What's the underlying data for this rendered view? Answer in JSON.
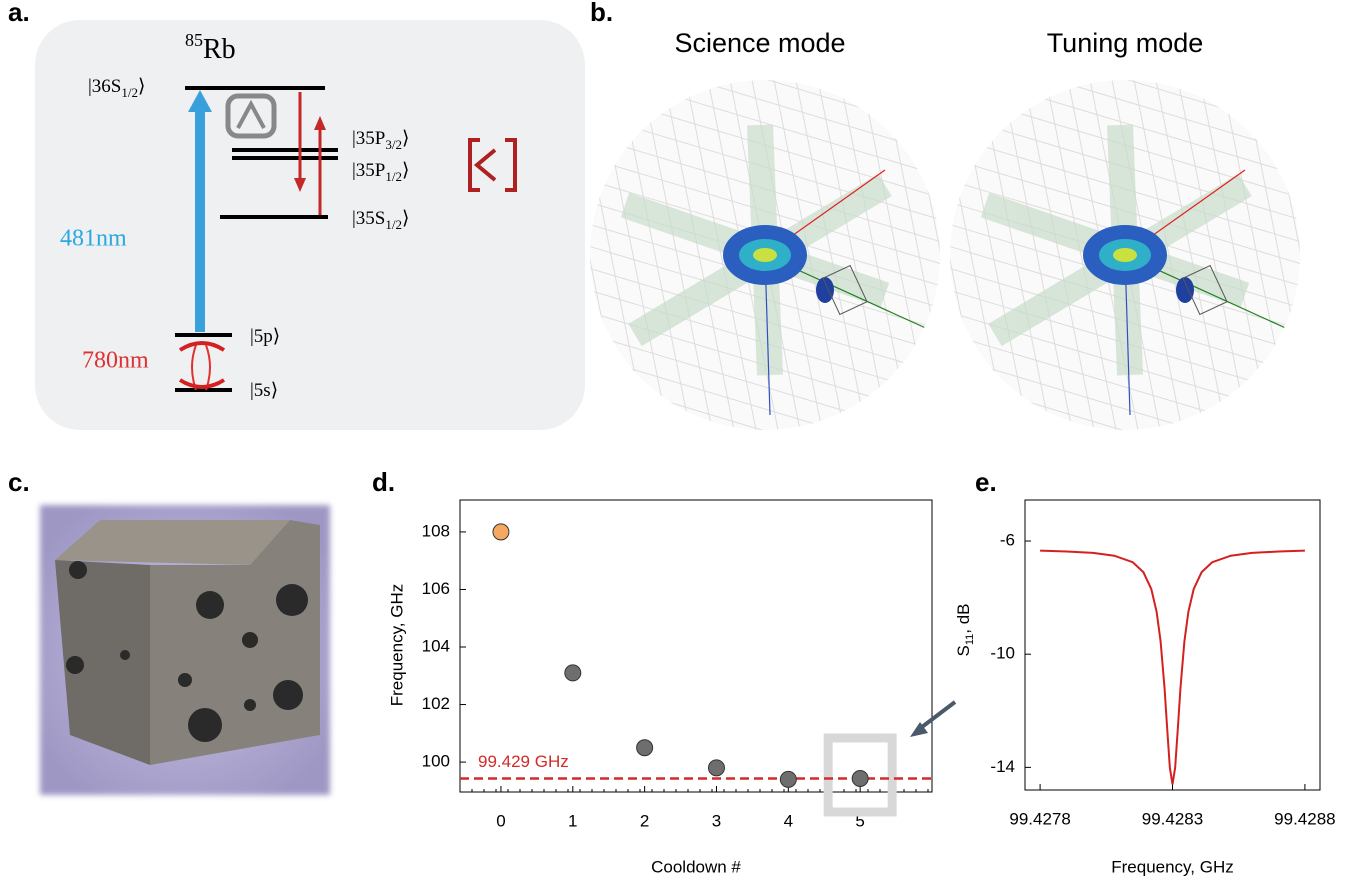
{
  "panel_labels": {
    "a": "a.",
    "b": "b.",
    "c": "c.",
    "d": "d.",
    "e": "e."
  },
  "energy_diagram": {
    "isotope_mass": "85",
    "isotope": "Rb",
    "levels": [
      {
        "text": "|36S",
        "sub": "1/2",
        "close": "⟩"
      },
      {
        "text": "|35P",
        "sub": "3/2",
        "close": "⟩"
      },
      {
        "text": "|35P",
        "sub": "1/2",
        "close": "⟩"
      },
      {
        "text": "|35S",
        "sub": "1/2",
        "close": "⟩"
      },
      {
        "text": "|5p⟩"
      },
      {
        "text": "|5s⟩"
      }
    ],
    "wavelengths": [
      "481nm",
      "780nm"
    ]
  },
  "simulation": {
    "titles": [
      "Science mode",
      "Tuning mode"
    ]
  },
  "chart_data": [
    {
      "type": "scatter",
      "xlabel": "Cooldown #",
      "ylabel": "Frequency, GHz",
      "x": [
        0,
        1,
        2,
        3,
        4,
        5
      ],
      "values": [
        108,
        103.1,
        100.5,
        99.8,
        99.4,
        99.43
      ],
      "colors": [
        "#f6a860",
        "#6e6e6e",
        "#6e6e6e",
        "#6e6e6e",
        "#6e6e6e",
        "#6e6e6e"
      ],
      "xlim": [
        -0.57,
        6.0
      ],
      "ylim": [
        98.96,
        109.11
      ],
      "xticks": [
        0,
        1,
        2,
        3,
        4,
        5
      ],
      "yticks": [
        100,
        102,
        104,
        106,
        108
      ],
      "reference_line": {
        "value": 99.429,
        "label": "99.429 GHz",
        "color": "#d42a2a"
      },
      "highlight_x": 5
    },
    {
      "type": "line",
      "xlabel": "Frequency, GHz",
      "ylabel": {
        "main": "S",
        "sub": "11",
        "rest": ", dB"
      },
      "color": "#d42020",
      "x": [
        99.4278,
        99.4279,
        99.428,
        99.42808,
        99.42815,
        99.42819,
        99.42822,
        99.42824,
        99.428255,
        99.42827,
        99.42828,
        99.42829,
        99.4283,
        99.42831,
        99.42832,
        99.42833,
        99.428345,
        99.42836,
        99.42838,
        99.42841,
        99.42845,
        99.42852,
        99.4286,
        99.4287,
        99.4288
      ],
      "values": [
        -6.34,
        -6.37,
        -6.42,
        -6.52,
        -6.75,
        -7.1,
        -7.7,
        -8.5,
        -9.54,
        -11.2,
        -12.64,
        -14.01,
        -14.6,
        -14.01,
        -12.64,
        -11.2,
        -9.54,
        -8.5,
        -7.7,
        -7.1,
        -6.75,
        -6.52,
        -6.42,
        -6.37,
        -6.34
      ],
      "xlim": [
        99.427743,
        99.428857
      ],
      "ylim": [
        -14.8,
        -4.55
      ],
      "xticks": [
        99.4278,
        99.4283,
        99.4288
      ],
      "yticks": [
        -6,
        -10,
        -14
      ]
    }
  ]
}
